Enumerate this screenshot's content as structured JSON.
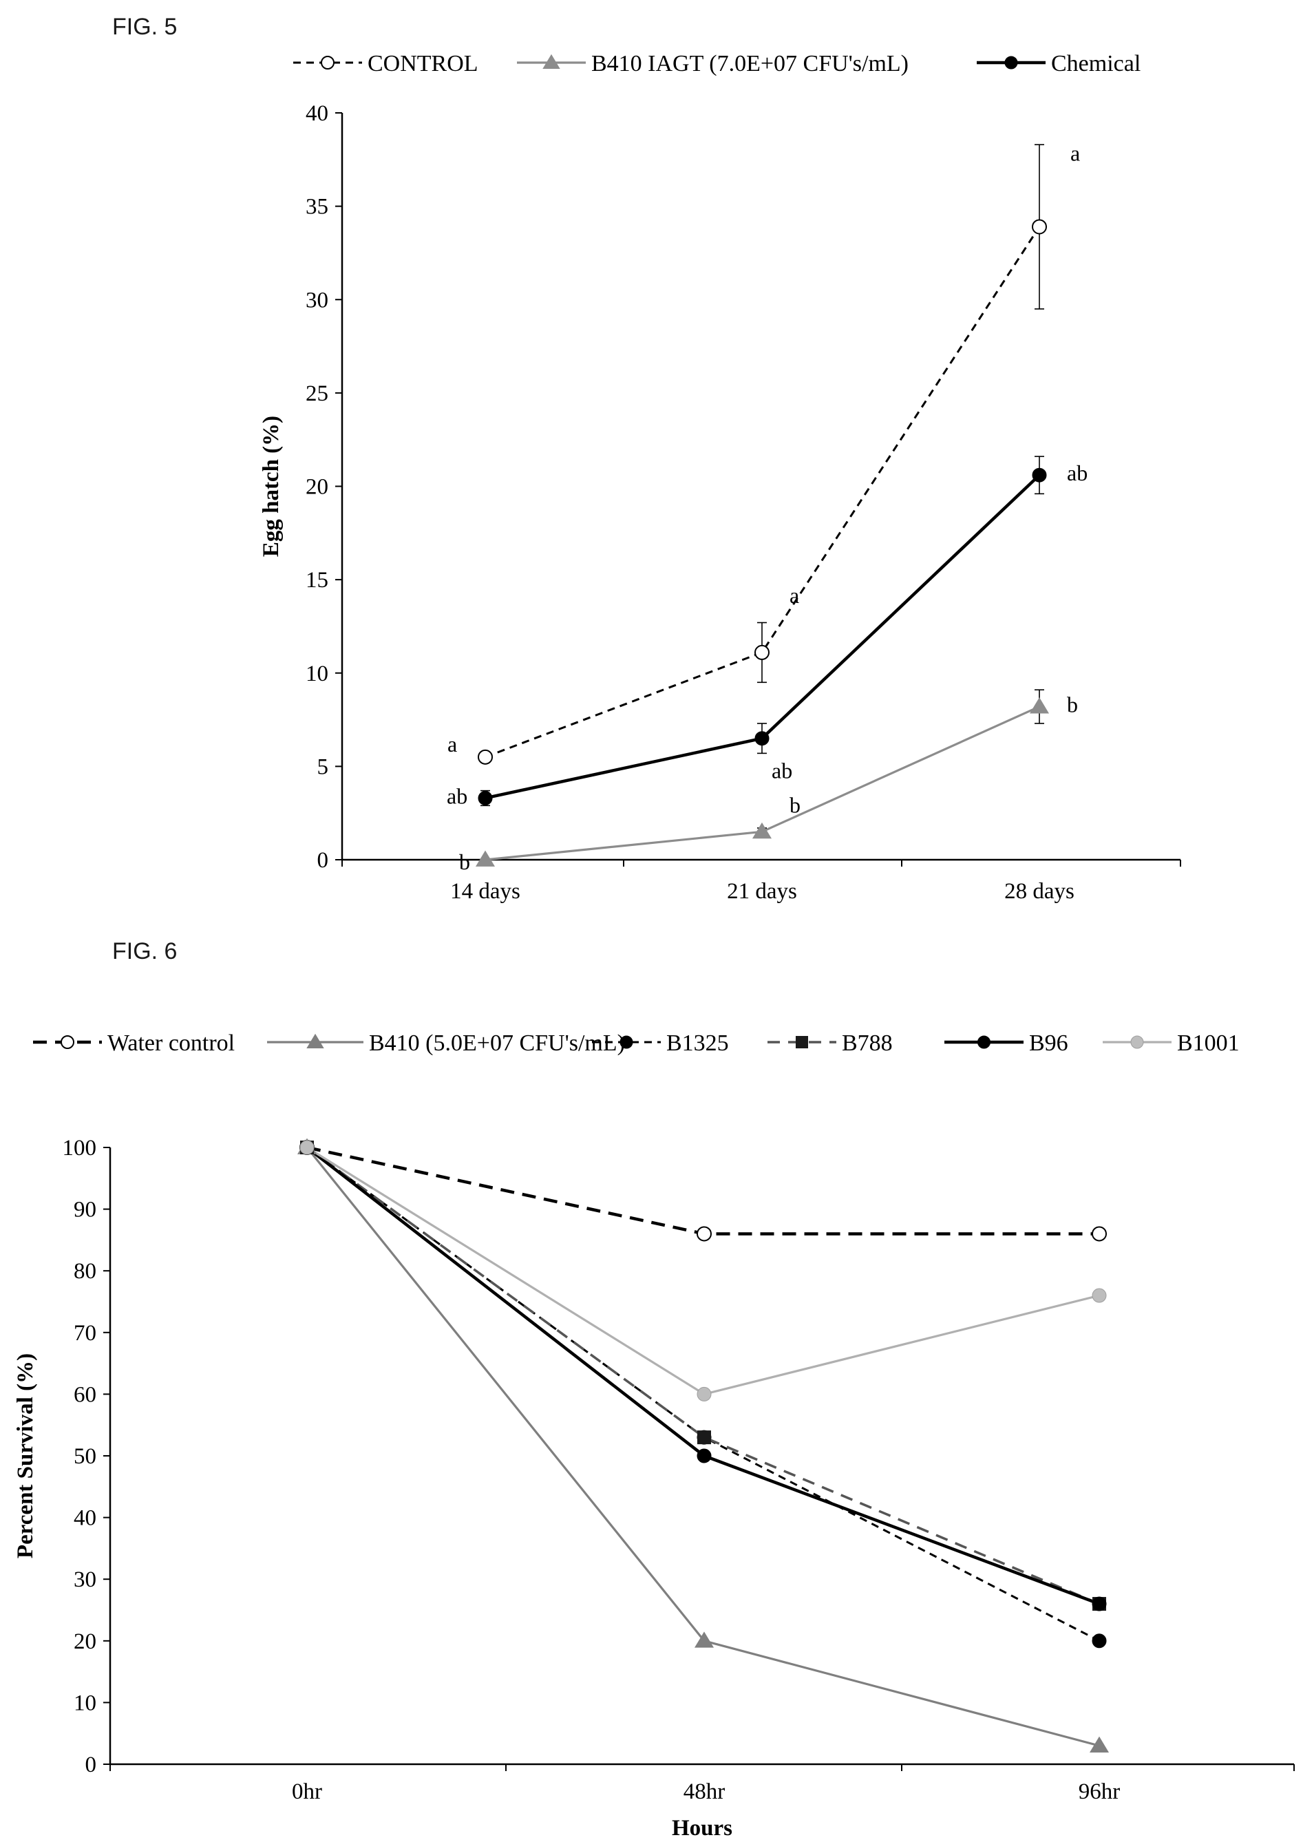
{
  "figure_labels": [
    "FIG. 5",
    "FIG. 6"
  ],
  "chart_data": [
    {
      "type": "line",
      "id": "fig5",
      "title": "",
      "xlabel": "",
      "ylabel": "Egg hatch (%)",
      "ylim": [
        0,
        40
      ],
      "yticks": [
        0,
        5,
        10,
        15,
        20,
        25,
        30,
        35,
        40
      ],
      "categories": [
        "14 days",
        "21 days",
        "28 days"
      ],
      "legend_position": "top",
      "grid": false,
      "series": [
        {
          "name": "CONTROL",
          "color": "#000000",
          "style": "dashed",
          "marker": "circle-open",
          "values": [
            5.5,
            11.1,
            33.9
          ],
          "errors": [
            0.2,
            1.6,
            4.4
          ],
          "annotations": [
            "a",
            "a",
            "a"
          ]
        },
        {
          "name": "B410 IAGT (7.0E+07 CFU's/mL)",
          "color": "#8c8c8c",
          "style": "solid",
          "marker": "triangle",
          "values": [
            0,
            1.5,
            8.2
          ],
          "errors": [
            0,
            0.2,
            0.9
          ],
          "annotations": [
            "b",
            "b",
            "b"
          ]
        },
        {
          "name": "Chemical",
          "color": "#000000",
          "style": "solid-bold",
          "marker": "circle-filled",
          "values": [
            3.3,
            6.5,
            20.6
          ],
          "errors": [
            0.4,
            0.8,
            1.0
          ],
          "annotations": [
            "ab",
            "ab",
            "ab"
          ]
        }
      ]
    },
    {
      "type": "line",
      "id": "fig6",
      "title": "",
      "xlabel": "Hours",
      "ylabel": "Percent Survival (%)",
      "ylim": [
        0,
        100
      ],
      "yticks": [
        0,
        10,
        20,
        30,
        40,
        50,
        60,
        70,
        80,
        90,
        100
      ],
      "categories": [
        "0hr",
        "48hr",
        "96hr"
      ],
      "legend_position": "top",
      "grid": false,
      "series": [
        {
          "name": "Water control",
          "color": "#000000",
          "style": "dashed-bold",
          "marker": "circle-open",
          "values": [
            100,
            86,
            86
          ]
        },
        {
          "name": "B410 (5.0E+07 CFU's/mL)",
          "color": "#7f7f7f",
          "style": "solid",
          "marker": "triangle",
          "values": [
            100,
            20,
            3
          ]
        },
        {
          "name": "B1325",
          "color": "#000000",
          "style": "dashed",
          "marker": "circle-filled",
          "values": [
            100,
            53,
            20
          ]
        },
        {
          "name": "B788",
          "color": "#555555",
          "style": "dashed-gray",
          "marker": "square",
          "values": [
            100,
            53,
            26
          ]
        },
        {
          "name": "B96",
          "color": "#000000",
          "style": "solid-bold",
          "marker": "circle-filled",
          "values": [
            100,
            50,
            26
          ]
        },
        {
          "name": "B1001",
          "color": "#b0b0b0",
          "style": "solid",
          "marker": "circle-light",
          "values": [
            100,
            60,
            76
          ]
        }
      ]
    }
  ]
}
